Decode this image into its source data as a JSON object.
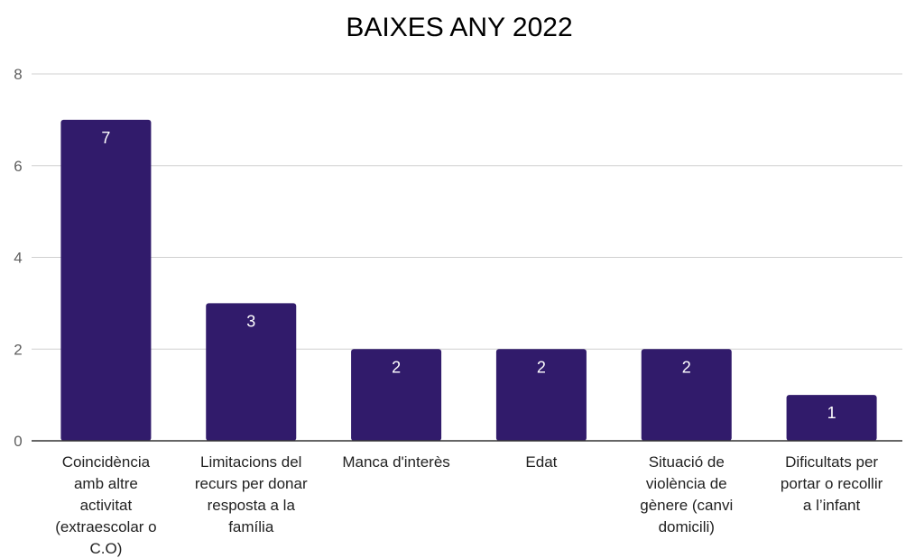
{
  "chart_data": {
    "type": "bar",
    "title": "BAIXES ANY 2022",
    "xlabel": "",
    "ylabel": "",
    "ylim": [
      0,
      8
    ],
    "yticks": [
      0,
      2,
      4,
      6,
      8
    ],
    "grid": true,
    "legend": "none",
    "bar_color": "#311b6b",
    "categories": [
      [
        "Coincidència",
        "amb altre",
        "activitat",
        "(extraescolar o",
        "C.O)"
      ],
      [
        "Limitacions del",
        "recurs per donar",
        "resposta a la",
        "família"
      ],
      [
        "Manca d'interès"
      ],
      [
        "Edat"
      ],
      [
        "Situació de",
        "violència de",
        "gènere (canvi",
        "domicili)"
      ],
      [
        "Dificultats per",
        "portar o recollir",
        "a l’infant"
      ]
    ],
    "values": [
      7,
      3,
      2,
      2,
      2,
      1
    ]
  }
}
